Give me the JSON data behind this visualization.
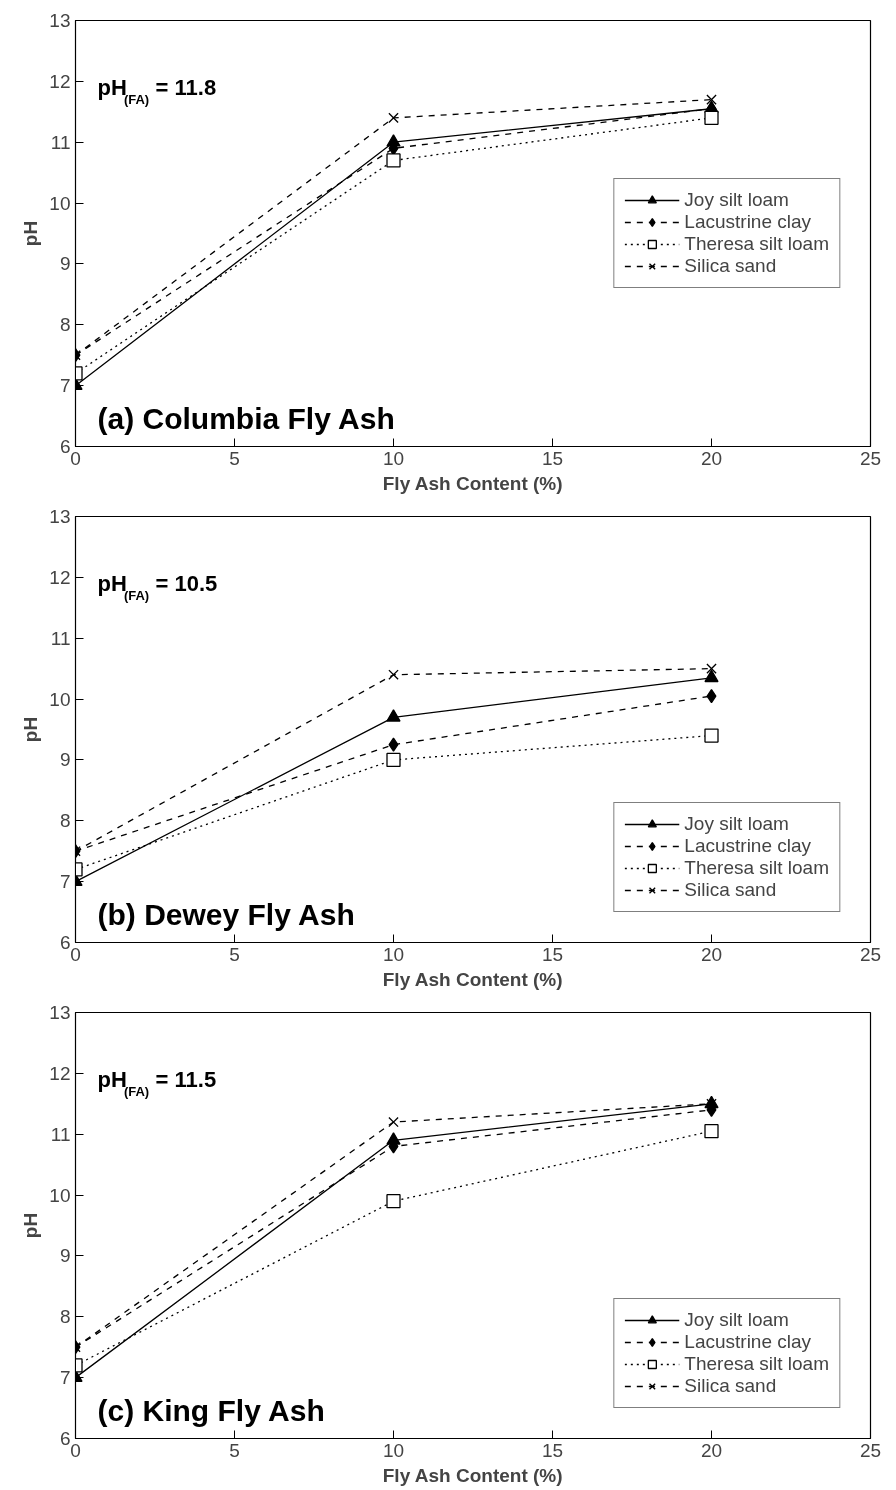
{
  "chart_data": [
    {
      "type": "line",
      "xlabel": "Fly Ash Content (%)",
      "ylabel": "pH",
      "x": [
        0,
        10,
        20
      ],
      "xlim": [
        0,
        25
      ],
      "xticks": [
        0,
        5,
        10,
        15,
        20,
        25
      ],
      "ylim": [
        6,
        13
      ],
      "yticks": [
        6,
        7,
        8,
        9,
        10,
        11,
        12,
        13
      ],
      "grid": false,
      "legend": "right",
      "annotations": [
        "pH$_{(FA)}$ = 11.8",
        "(a)  Columbia Fly Ash"
      ],
      "series": [
        {
          "name": "Joy silt loam",
          "color": "#000000",
          "marker": "triangle",
          "line_style": "solid",
          "values": [
            7.0,
            11.0,
            11.55
          ]
        },
        {
          "name": "Lacustrine clay",
          "color": "#000000",
          "marker": "diamond",
          "line_style": "dashed",
          "values": [
            7.5,
            10.9,
            11.55
          ]
        },
        {
          "name": "Theresa silt loam",
          "color": "#000000",
          "marker": "square",
          "line_style": "dotted",
          "values": [
            7.2,
            10.7,
            11.4
          ]
        },
        {
          "name": "Silica sand",
          "color": "#000000",
          "marker": "cross",
          "line_style": "dashed",
          "values": [
            7.5,
            11.4,
            11.7
          ]
        }
      ]
    },
    {
      "type": "line",
      "xlabel": "Fly Ash Content (%)",
      "ylabel": "pH",
      "x": [
        0,
        10,
        20
      ],
      "xlim": [
        0,
        25
      ],
      "xticks": [
        0,
        5,
        10,
        15,
        20,
        25
      ],
      "ylim": [
        6,
        13
      ],
      "yticks": [
        6,
        7,
        8,
        9,
        10,
        11,
        12,
        13
      ],
      "grid": false,
      "legend": "bottom right",
      "annotations": [
        "pH$_{(FA)}$ = 10.5",
        "(b)  Dewey Fly Ash"
      ],
      "series": [
        {
          "name": "Joy silt loam",
          "color": "#000000",
          "marker": "triangle",
          "line_style": "solid",
          "values": [
            7.0,
            9.7,
            10.35
          ]
        },
        {
          "name": "Lacustrine clay",
          "color": "#000000",
          "marker": "diamond",
          "line_style": "dashed",
          "values": [
            7.5,
            9.25,
            10.05
          ]
        },
        {
          "name": "Theresa silt loam",
          "color": "#000000",
          "marker": "square",
          "line_style": "dotted",
          "values": [
            7.2,
            9.0,
            9.4
          ]
        },
        {
          "name": "Silica sand",
          "color": "#000000",
          "marker": "cross",
          "line_style": "dashed",
          "values": [
            7.5,
            10.4,
            10.5
          ]
        }
      ]
    },
    {
      "type": "line",
      "xlabel": "Fly Ash Content (%)",
      "ylabel": "pH",
      "x": [
        0,
        10,
        20
      ],
      "xlim": [
        0,
        25
      ],
      "xticks": [
        0,
        5,
        10,
        15,
        20,
        25
      ],
      "ylim": [
        6,
        13
      ],
      "yticks": [
        6,
        7,
        8,
        9,
        10,
        11,
        12,
        13
      ],
      "grid": false,
      "legend": "bottom right",
      "annotations": [
        "pH$_{(FA)}$ = 11.5",
        "(c)  King Fly Ash"
      ],
      "series": [
        {
          "name": "Joy silt loam",
          "color": "#000000",
          "marker": "triangle",
          "line_style": "solid",
          "values": [
            7.0,
            10.9,
            11.5
          ]
        },
        {
          "name": "Lacustrine clay",
          "color": "#000000",
          "marker": "diamond",
          "line_style": "dashed",
          "values": [
            7.5,
            10.8,
            11.4
          ]
        },
        {
          "name": "Theresa silt loam",
          "color": "#000000",
          "marker": "square",
          "line_style": "dotted",
          "values": [
            7.2,
            9.9,
            11.05
          ]
        },
        {
          "name": "Silica sand",
          "color": "#000000",
          "marker": "cross",
          "line_style": "dashed",
          "values": [
            7.5,
            11.2,
            11.5
          ]
        }
      ]
    }
  ]
}
